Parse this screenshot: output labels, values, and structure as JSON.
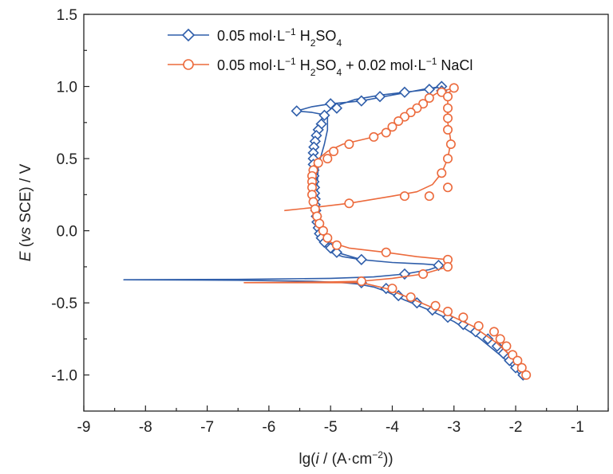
{
  "chart_data": {
    "type": "line",
    "xlabel_parts": [
      "lg(",
      "i",
      " / (A·cm",
      "−2",
      "))"
    ],
    "ylabel_parts": [
      "E",
      " (",
      "vs",
      " SCE) / V"
    ],
    "xlim": [
      -9,
      -0.5
    ],
    "ylim": [
      -1.25,
      1.5
    ],
    "xticks": [
      -9,
      -8,
      -7,
      -6,
      -5,
      -4,
      -3,
      -2,
      -1
    ],
    "xtick_labels": [
      "-9",
      "-8",
      "-7",
      "-6",
      "-5",
      "-4",
      "-3",
      "-2",
      "-1"
    ],
    "yticks": [
      1.5,
      1.0,
      0.5,
      0.0,
      -0.5,
      -1.0
    ],
    "ytick_labels": [
      "1.5",
      "1.0",
      "0.5",
      "0.0",
      "-0.5",
      "-1.0"
    ],
    "legend_position": "top",
    "series": [
      {
        "legend_parts": [
          "0.05 mol·L",
          "−1",
          " H",
          "2",
          "SO",
          "4"
        ],
        "color": "#2f5eaa",
        "marker": "diamond",
        "line": [
          [
            -1.85,
            -1.03
          ],
          [
            -2.2,
            -0.88
          ],
          [
            -2.6,
            -0.74
          ],
          [
            -3.0,
            -0.63
          ],
          [
            -3.4,
            -0.55
          ],
          [
            -3.8,
            -0.48
          ],
          [
            -4.1,
            -0.42
          ],
          [
            -4.3,
            -0.39
          ],
          [
            -4.55,
            -0.37
          ],
          [
            -4.8,
            -0.36
          ],
          [
            -5.3,
            -0.35
          ],
          [
            -6.5,
            -0.343
          ],
          [
            -8.35,
            -0.34
          ],
          [
            -6.5,
            -0.337
          ],
          [
            -5.0,
            -0.33
          ],
          [
            -4.3,
            -0.32
          ],
          [
            -3.8,
            -0.3
          ],
          [
            -3.4,
            -0.27
          ],
          [
            -3.2,
            -0.24
          ],
          [
            -3.5,
            -0.23
          ],
          [
            -4.0,
            -0.22
          ],
          [
            -4.5,
            -0.2
          ],
          [
            -4.8,
            -0.18
          ],
          [
            -5.0,
            -0.15
          ],
          [
            -5.1,
            -0.1
          ],
          [
            -5.15,
            -0.05
          ],
          [
            -5.2,
            0.0
          ],
          [
            -5.22,
            0.1
          ],
          [
            -5.25,
            0.2
          ],
          [
            -5.27,
            0.3
          ],
          [
            -5.27,
            0.4
          ],
          [
            -5.27,
            0.5
          ],
          [
            -5.26,
            0.6
          ],
          [
            -5.22,
            0.7
          ],
          [
            -5.12,
            0.8
          ],
          [
            -4.95,
            0.86
          ],
          [
            -4.6,
            0.91
          ],
          [
            -4.2,
            0.94
          ],
          [
            -3.8,
            0.96
          ],
          [
            -3.4,
            0.98
          ],
          [
            -3.2,
            1.0
          ],
          [
            -3.5,
            0.98
          ],
          [
            -4.0,
            0.94
          ],
          [
            -4.5,
            0.9
          ],
          [
            -5.0,
            0.88
          ],
          [
            -5.3,
            0.86
          ],
          [
            -5.55,
            0.83
          ],
          [
            -5.3,
            0.82
          ],
          [
            -5.05,
            0.8
          ],
          [
            -5.05,
            0.7
          ],
          [
            -5.1,
            0.6
          ],
          [
            -5.2,
            0.45
          ],
          [
            -5.22,
            0.3
          ],
          [
            -5.2,
            0.15
          ],
          [
            -5.15,
            0.0
          ],
          [
            -5.05,
            -0.08
          ],
          [
            -4.9,
            -0.15
          ],
          [
            -4.5,
            -0.2
          ]
        ],
        "markers": [
          [
            -5.55,
            0.83
          ],
          [
            -5.0,
            0.88
          ],
          [
            -4.5,
            0.9
          ],
          [
            -4.2,
            0.93
          ],
          [
            -3.8,
            0.96
          ],
          [
            -3.4,
            0.98
          ],
          [
            -3.2,
            1.0
          ],
          [
            -3.2,
            0.97
          ],
          [
            -4.9,
            0.85
          ],
          [
            -5.1,
            0.8
          ],
          [
            -5.15,
            0.74
          ],
          [
            -5.2,
            0.7
          ],
          [
            -5.23,
            0.66
          ],
          [
            -5.25,
            0.62
          ],
          [
            -5.27,
            0.58
          ],
          [
            -5.28,
            0.54
          ],
          [
            -5.28,
            0.5
          ],
          [
            -5.28,
            0.46
          ],
          [
            -5.27,
            0.42
          ],
          [
            -5.27,
            0.38
          ],
          [
            -5.27,
            0.34
          ],
          [
            -5.26,
            0.3
          ],
          [
            -5.26,
            0.26
          ],
          [
            -5.25,
            0.22
          ],
          [
            -5.25,
            0.18
          ],
          [
            -5.24,
            0.14
          ],
          [
            -5.23,
            0.1
          ],
          [
            -5.22,
            0.06
          ],
          [
            -5.2,
            0.02
          ],
          [
            -5.18,
            -0.02
          ],
          [
            -5.15,
            -0.05
          ],
          [
            -5.1,
            -0.08
          ],
          [
            -5.0,
            -0.12
          ],
          [
            -4.9,
            -0.15
          ],
          [
            -4.5,
            -0.2
          ],
          [
            -3.25,
            -0.24
          ],
          [
            -3.8,
            -0.3
          ],
          [
            -4.5,
            -0.36
          ],
          [
            -4.1,
            -0.4
          ],
          [
            -3.9,
            -0.45
          ],
          [
            -3.6,
            -0.5
          ],
          [
            -3.35,
            -0.55
          ],
          [
            -3.1,
            -0.6
          ],
          [
            -2.85,
            -0.65
          ],
          [
            -2.65,
            -0.7
          ],
          [
            -2.45,
            -0.75
          ],
          [
            -2.3,
            -0.8
          ],
          [
            -2.2,
            -0.85
          ],
          [
            -2.1,
            -0.9
          ],
          [
            -2.0,
            -0.95
          ],
          [
            -1.88,
            -1.0
          ]
        ]
      },
      {
        "legend_parts": [
          "0.05 mol·L",
          "−1",
          " H",
          "2",
          "SO",
          "4",
          " + 0.02 mol·L",
          "−1",
          " NaCl"
        ],
        "color": "#ec6a3c",
        "marker": "circle",
        "line": [
          [
            -1.82,
            -1.0
          ],
          [
            -2.0,
            -0.9
          ],
          [
            -2.3,
            -0.78
          ],
          [
            -2.7,
            -0.66
          ],
          [
            -3.2,
            -0.56
          ],
          [
            -3.7,
            -0.47
          ],
          [
            -4.1,
            -0.4
          ],
          [
            -4.5,
            -0.36
          ],
          [
            -5.0,
            -0.36
          ],
          [
            -6.4,
            -0.36
          ],
          [
            -5.0,
            -0.355
          ],
          [
            -4.5,
            -0.35
          ],
          [
            -4.0,
            -0.33
          ],
          [
            -3.5,
            -0.3
          ],
          [
            -3.1,
            -0.25
          ],
          [
            -3.1,
            -0.2
          ],
          [
            -3.6,
            -0.18
          ],
          [
            -4.1,
            -0.15
          ],
          [
            -4.7,
            -0.12
          ],
          [
            -5.0,
            -0.08
          ],
          [
            -5.15,
            -0.02
          ],
          [
            -5.23,
            0.05
          ],
          [
            -5.28,
            0.1
          ],
          [
            -5.3,
            0.2
          ],
          [
            -5.3,
            0.3
          ],
          [
            -5.3,
            0.4
          ],
          [
            -5.25,
            0.48
          ],
          [
            -5.05,
            0.55
          ],
          [
            -4.8,
            0.6
          ],
          [
            -4.3,
            0.65
          ],
          [
            -4.0,
            0.72
          ],
          [
            -3.8,
            0.79
          ],
          [
            -3.6,
            0.86
          ],
          [
            -3.45,
            0.91
          ],
          [
            -3.25,
            0.96
          ],
          [
            -3.0,
            0.99
          ],
          [
            -3.1,
            0.95
          ],
          [
            -3.1,
            0.85
          ],
          [
            -3.1,
            0.75
          ],
          [
            -3.05,
            0.62
          ],
          [
            -3.1,
            0.5
          ],
          [
            -3.2,
            0.4
          ],
          [
            -3.35,
            0.32
          ],
          [
            -3.6,
            0.27
          ],
          [
            -4.0,
            0.24
          ],
          [
            -4.7,
            0.19
          ],
          [
            -5.3,
            0.16
          ],
          [
            -5.75,
            0.14
          ]
        ],
        "markers": [
          [
            -3.0,
            0.99
          ],
          [
            -3.2,
            0.96
          ],
          [
            -3.4,
            0.92
          ],
          [
            -3.5,
            0.88
          ],
          [
            -3.6,
            0.85
          ],
          [
            -3.7,
            0.82
          ],
          [
            -3.8,
            0.79
          ],
          [
            -3.9,
            0.76
          ],
          [
            -4.0,
            0.72
          ],
          [
            -4.1,
            0.68
          ],
          [
            -4.3,
            0.65
          ],
          [
            -4.7,
            0.6
          ],
          [
            -4.95,
            0.55
          ],
          [
            -5.05,
            0.5
          ],
          [
            -5.2,
            0.47
          ],
          [
            -5.28,
            0.42
          ],
          [
            -5.3,
            0.38
          ],
          [
            -5.3,
            0.34
          ],
          [
            -5.3,
            0.3
          ],
          [
            -5.3,
            0.25
          ],
          [
            -5.28,
            0.2
          ],
          [
            -5.25,
            0.15
          ],
          [
            -5.22,
            0.1
          ],
          [
            -5.18,
            0.05
          ],
          [
            -5.12,
            0.0
          ],
          [
            -5.05,
            -0.05
          ],
          [
            -4.9,
            -0.1
          ],
          [
            -4.1,
            -0.15
          ],
          [
            -3.1,
            -0.2
          ],
          [
            -3.1,
            -0.25
          ],
          [
            -3.5,
            -0.3
          ],
          [
            -4.5,
            -0.35
          ],
          [
            -4.0,
            -0.4
          ],
          [
            -3.7,
            -0.46
          ],
          [
            -3.3,
            -0.52
          ],
          [
            -3.1,
            -0.56
          ],
          [
            -2.85,
            -0.6
          ],
          [
            -2.6,
            -0.66
          ],
          [
            -2.35,
            -0.7
          ],
          [
            -2.25,
            -0.75
          ],
          [
            -2.15,
            -0.8
          ],
          [
            -2.05,
            -0.86
          ],
          [
            -1.97,
            -0.9
          ],
          [
            -1.9,
            -0.95
          ],
          [
            -1.83,
            -1.0
          ],
          [
            -3.1,
            0.3
          ],
          [
            -3.2,
            0.4
          ],
          [
            -3.1,
            0.5
          ],
          [
            -3.05,
            0.6
          ],
          [
            -3.1,
            0.7
          ],
          [
            -3.1,
            0.78
          ],
          [
            -3.1,
            0.85
          ],
          [
            -3.1,
            0.93
          ],
          [
            -3.4,
            0.24
          ],
          [
            -3.8,
            0.24
          ],
          [
            -4.7,
            0.19
          ]
        ]
      }
    ]
  }
}
